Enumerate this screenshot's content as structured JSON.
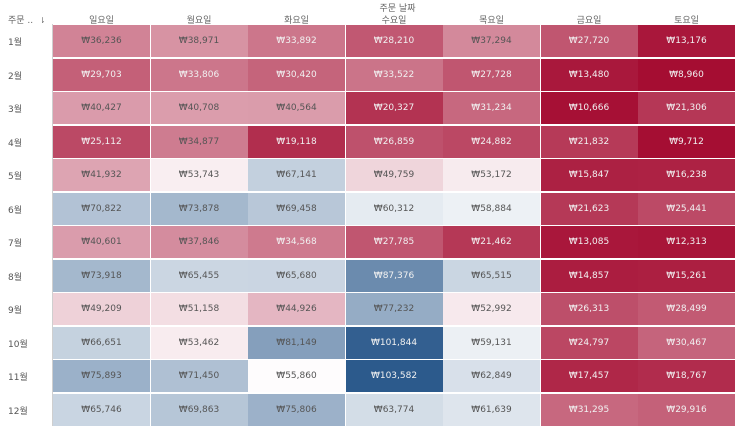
{
  "chart_data": {
    "type": "heatmap",
    "title": "주문 날짜",
    "row_header": "주문 .. ",
    "sort_icon": "sort-icon",
    "columns": [
      "일요일",
      "월요일",
      "화요일",
      "수요일",
      "목요일",
      "금요일",
      "토요일"
    ],
    "rows": [
      "1월",
      "2월",
      "3월",
      "4월",
      "5월",
      "6월",
      "7월",
      "8월",
      "9월",
      "10월",
      "11월",
      "12월"
    ],
    "labels": [
      [
        "₩36,236",
        "₩38,971",
        "₩33,892",
        "₩28,210",
        "₩37,294",
        "₩27,720",
        "₩13,176"
      ],
      [
        "₩29,703",
        "₩33,806",
        "₩30,420",
        "₩33,522",
        "₩27,728",
        "₩13,480",
        "₩8,960"
      ],
      [
        "₩40,427",
        "₩40,708",
        "₩40,564",
        "₩20,327",
        "₩31,234",
        "₩10,666",
        "₩21,306"
      ],
      [
        "₩25,112",
        "₩34,877",
        "₩19,118",
        "₩26,859",
        "₩24,882",
        "₩21,832",
        "₩9,712"
      ],
      [
        "₩41,932",
        "₩53,743",
        "₩67,141",
        "₩49,759",
        "₩53,172",
        "₩15,847",
        "₩16,238"
      ],
      [
        "₩70,822",
        "₩73,878",
        "₩69,458",
        "₩60,312",
        "₩58,884",
        "₩21,623",
        "₩25,441"
      ],
      [
        "₩40,601",
        "₩37,846",
        "₩34,568",
        "₩27,785",
        "₩21,462",
        "₩13,085",
        "₩12,313"
      ],
      [
        "₩73,918",
        "₩65,455",
        "₩65,680",
        "₩87,376",
        "₩65,515",
        "₩14,857",
        "₩15,261"
      ],
      [
        "₩49,209",
        "₩51,158",
        "₩44,926",
        "₩77,232",
        "₩52,992",
        "₩26,313",
        "₩28,499"
      ],
      [
        "₩66,651",
        "₩53,462",
        "₩81,149",
        "₩101,844",
        "₩59,131",
        "₩24,797",
        "₩30,467"
      ],
      [
        "₩75,893",
        "₩71,450",
        "₩55,860",
        "₩103,582",
        "₩62,849",
        "₩17,457",
        "₩18,767"
      ],
      [
        "₩65,746",
        "₩69,863",
        "₩75,806",
        "₩63,774",
        "₩61,639",
        "₩31,295",
        "₩29,916"
      ]
    ],
    "values": [
      [
        36236,
        38971,
        33892,
        28210,
        37294,
        27720,
        13176
      ],
      [
        29703,
        33806,
        30420,
        33522,
        27728,
        13480,
        8960
      ],
      [
        40427,
        40708,
        40564,
        20327,
        31234,
        10666,
        21306
      ],
      [
        25112,
        34877,
        19118,
        26859,
        24882,
        21832,
        9712
      ],
      [
        41932,
        53743,
        67141,
        49759,
        53172,
        15847,
        16238
      ],
      [
        70822,
        73878,
        69458,
        60312,
        58884,
        21623,
        25441
      ],
      [
        40601,
        37846,
        34568,
        27785,
        21462,
        13085,
        12313
      ],
      [
        73918,
        65455,
        65680,
        87376,
        65515,
        14857,
        15261
      ],
      [
        49209,
        51158,
        44926,
        77232,
        52992,
        26313,
        28499
      ],
      [
        66651,
        53462,
        81149,
        101844,
        59131,
        24797,
        30467
      ],
      [
        75893,
        71450,
        55860,
        103582,
        62849,
        17457,
        18767
      ],
      [
        65746,
        69863,
        75806,
        63774,
        61639,
        31295,
        29916
      ]
    ],
    "color_scale": {
      "type": "diverging",
      "low_color": "#a50d32",
      "mid_color": "#ffffff",
      "high_color": "#2c5a8c"
    }
  }
}
